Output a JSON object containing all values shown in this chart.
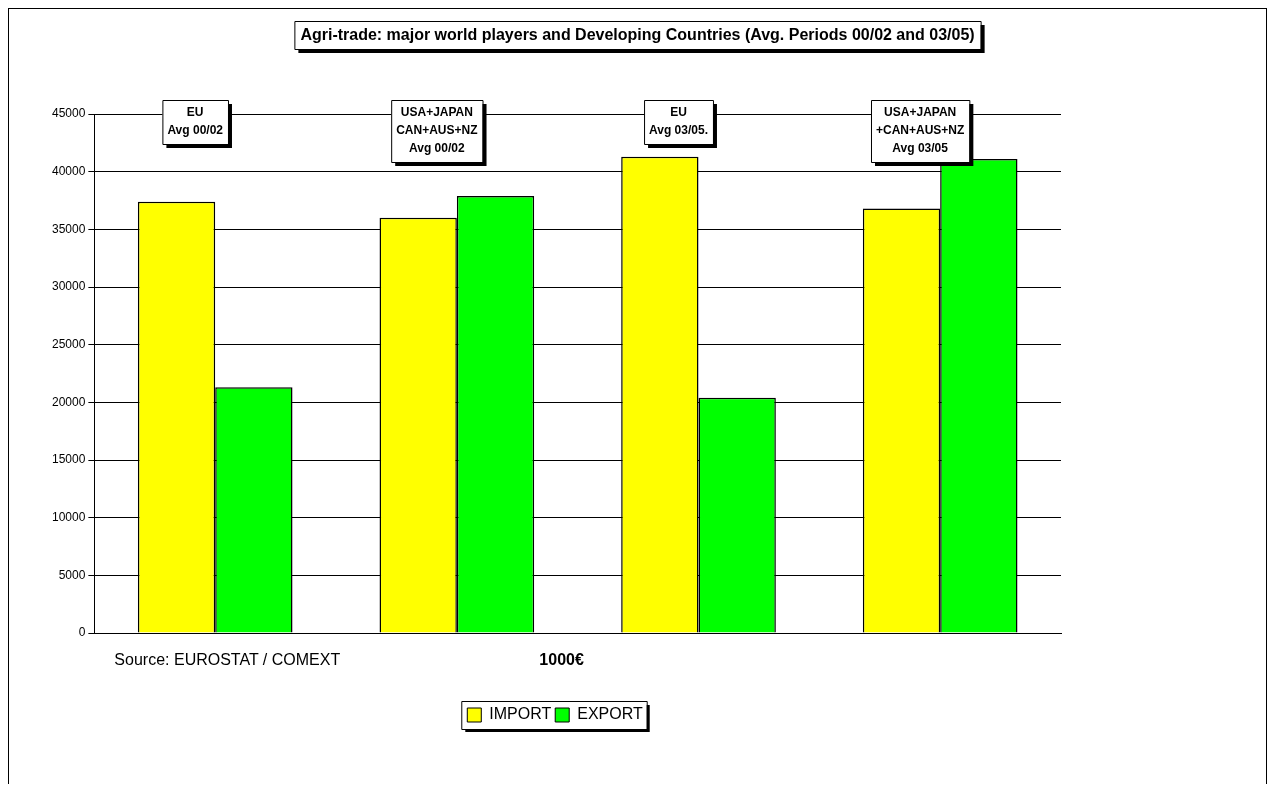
{
  "chart_data": {
    "type": "bar",
    "title": "Agri-trade: major world players and Developing Countries (Avg. Periods 00/02 and 03/05)",
    "categories": [
      "EU\nAvg 00/02",
      "USA+JAPAN\nCAN+AUS+NZ\nAvg 00/02",
      "EU\nAvg 03/05.",
      "USA+JAPAN\n+CAN+AUS+NZ\nAvg 03/05"
    ],
    "series": [
      {
        "name": "IMPORT",
        "color": "#ffff00",
        "values": [
          37400,
          36000,
          41300,
          36800
        ]
      },
      {
        "name": "EXPORT",
        "color": "#00ff00",
        "values": [
          21300,
          37900,
          20400,
          41100
        ]
      }
    ],
    "ylim": [
      0,
      45000
    ],
    "yticks": [
      0,
      5000,
      10000,
      15000,
      20000,
      25000,
      30000,
      35000,
      40000,
      45000
    ],
    "annotations": [
      "Source: EUROSTAT / COMEXT",
      "1000€"
    ],
    "grid": "y",
    "legend": "bottom"
  }
}
